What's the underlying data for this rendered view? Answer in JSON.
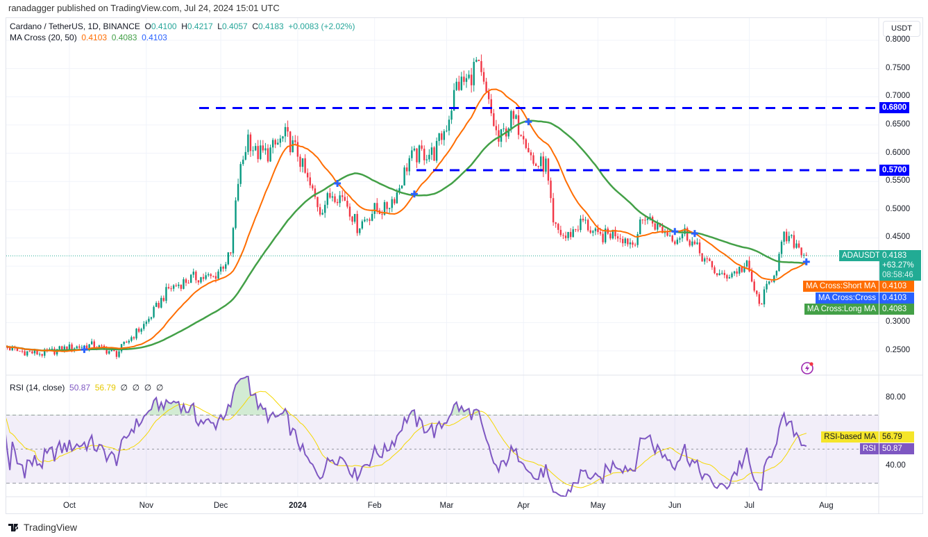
{
  "header": {
    "published": "ranadagger published on TradingView.com, Jul 24, 2024 15:01 UTC"
  },
  "legend": {
    "symbol": "Cardano / TetherUS, 1D, BINANCE",
    "o_label": "O",
    "o": "0.4100",
    "h_label": "H",
    "h": "0.4217",
    "l_label": "L",
    "l": "0.4057",
    "c_label": "C",
    "c": "0.4183",
    "change": "+0.0083 (+2.02%)",
    "ma_title": "MA Cross (20, 50)",
    "ma_short": "0.4103",
    "ma_long": "0.4083",
    "ma_cross": "0.4103"
  },
  "rsi_legend": {
    "title": "RSI (14, close)",
    "rsi": "50.87",
    "ma": "56.79",
    "na": [
      "∅",
      "∅",
      "∅",
      "∅"
    ]
  },
  "currency_button": "USDT",
  "price_ticks": [
    "0.8000",
    "0.7500",
    "0.7000",
    "0.6500",
    "0.6000",
    "0.5500",
    "0.5000",
    "0.4500",
    "0.3000",
    "0.2500"
  ],
  "rsi_ticks": [
    "80.00",
    "40.00"
  ],
  "price_labels": {
    "level_high": "0.6800",
    "level_low": "0.5700",
    "symbol": "ADAUSDT",
    "last": "0.4183",
    "change_pct": "+63.27%",
    "countdown": "08:58:46",
    "short_ma_name": "MA Cross:Short MA",
    "short_ma": "0.4103",
    "cross_name": "MA Cross:Cross",
    "cross": "0.4103",
    "long_ma_name": "MA Cross:Long MA",
    "long_ma": "0.4083",
    "rsi_ma_name": "RSI-based MA",
    "rsi_ma": "56.79",
    "rsi_name": "RSI",
    "rsi": "50.87"
  },
  "time_axis": [
    "Oct",
    "Nov",
    "Dec",
    "2024",
    "Feb",
    "Mar",
    "Apr",
    "May",
    "Jun",
    "Jul",
    "Aug"
  ],
  "footer": "TradingView",
  "colors": {
    "up": "#089981",
    "down": "#f23645",
    "short_ma": "#ff6d00",
    "long_ma": "#43a047",
    "cross": "#2962ff",
    "level": "#0000ff",
    "rsi": "#7e57c2",
    "rsi_ma": "#f5d800"
  },
  "chart_data": {
    "type": "candlestick",
    "title": "Cardano / TetherUS, 1D, BINANCE",
    "start_date": "2023-09-03",
    "ylim": [
      0.22,
      0.81
    ],
    "horizontal_levels": [
      0.68,
      0.57
    ],
    "last_close": 0.4183,
    "ma_periods": [
      20,
      50
    ],
    "rsi_period": 14,
    "rsi_levels": [
      70,
      30
    ],
    "close_keypoints_day_price": [
      [
        0,
        0.26
      ],
      [
        7,
        0.25
      ],
      [
        17,
        0.245
      ],
      [
        27,
        0.255
      ],
      [
        37,
        0.26
      ],
      [
        47,
        0.245
      ],
      [
        52,
        0.27
      ],
      [
        59,
        0.3
      ],
      [
        68,
        0.36
      ],
      [
        73,
        0.37
      ],
      [
        78,
        0.38
      ],
      [
        86,
        0.38
      ],
      [
        93,
        0.42
      ],
      [
        96,
        0.55
      ],
      [
        100,
        0.63
      ],
      [
        103,
        0.6
      ],
      [
        108,
        0.6
      ],
      [
        115,
        0.63
      ],
      [
        120,
        0.6
      ],
      [
        124,
        0.55
      ],
      [
        129,
        0.5
      ],
      [
        134,
        0.53
      ],
      [
        139,
        0.52
      ],
      [
        144,
        0.47
      ],
      [
        151,
        0.5
      ],
      [
        155,
        0.5
      ],
      [
        160,
        0.53
      ],
      [
        165,
        0.59
      ],
      [
        170,
        0.6
      ],
      [
        175,
        0.6
      ],
      [
        180,
        0.65
      ],
      [
        184,
        0.72
      ],
      [
        189,
        0.73
      ],
      [
        192,
        0.76
      ],
      [
        196,
        0.7
      ],
      [
        201,
        0.62
      ],
      [
        206,
        0.66
      ],
      [
        211,
        0.64
      ],
      [
        215,
        0.58
      ],
      [
        220,
        0.58
      ],
      [
        223,
        0.47
      ],
      [
        228,
        0.45
      ],
      [
        235,
        0.48
      ],
      [
        241,
        0.45
      ],
      [
        248,
        0.46
      ],
      [
        255,
        0.44
      ],
      [
        260,
        0.49
      ],
      [
        265,
        0.47
      ],
      [
        272,
        0.45
      ],
      [
        276,
        0.46
      ],
      [
        281,
        0.43
      ],
      [
        286,
        0.4
      ],
      [
        291,
        0.38
      ],
      [
        296,
        0.39
      ],
      [
        301,
        0.4
      ],
      [
        306,
        0.33
      ],
      [
        309,
        0.36
      ],
      [
        313,
        0.4
      ],
      [
        316,
        0.45
      ],
      [
        321,
        0.44
      ],
      [
        325,
        0.4183
      ]
    ]
  }
}
